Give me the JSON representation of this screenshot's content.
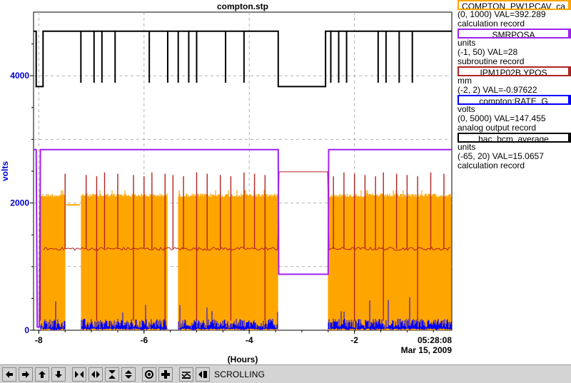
{
  "chart_data": {
    "type": "line",
    "title": "compton.stp",
    "xlabel": "(Hours)",
    "ylabel": "volts",
    "xlim": [
      -8.1,
      -0.15
    ],
    "ylim": [
      0,
      5000
    ],
    "x_ticks": [
      -8,
      -6,
      -4,
      -2
    ],
    "x_tick_labels": [
      "-8",
      "-6",
      "-4",
      "-2"
    ],
    "y_ticks": [
      0,
      2000,
      4000
    ],
    "y_tick_labels": [
      "0",
      "2000",
      "4000"
    ],
    "grid": true,
    "end_time": "05:28:08",
    "end_date": "Mar 15, 2009",
    "gaps": [
      [
        -7.5,
        -7.2
      ],
      [
        -5.55,
        -5.35
      ],
      [
        -3.45,
        -2.5
      ]
    ],
    "series": [
      {
        "name": "COMPTON_PW1PCAV_ca",
        "color": "#ffa500",
        "range": "(0, 1000)",
        "val": "VAL=392.289",
        "record": "calculation record",
        "style": "band",
        "low": 0,
        "high": 2150,
        "high_peak": 2200,
        "flat_level": 1970,
        "flat_segments": [
          [
            -7.48,
            -7.22
          ]
        ]
      },
      {
        "name": "SMRPOSA",
        "color": "#a020f0",
        "units": "units",
        "range": "(-1, 50)",
        "val": "VAL=28",
        "record": "subroutine record",
        "points": [
          [
            -8.1,
            2840
          ],
          [
            -8.05,
            2840
          ],
          [
            -8.03,
            50
          ],
          [
            -7.99,
            50
          ],
          [
            -7.97,
            2840
          ],
          [
            -3.45,
            2840
          ],
          [
            -3.44,
            880
          ],
          [
            -2.5,
            880
          ],
          [
            -2.49,
            2840
          ],
          [
            -0.15,
            2840
          ]
        ]
      },
      {
        "name": "IPM1P02B.YPOS",
        "color": "#b22222",
        "units": "mm",
        "range": "(-2, 2)",
        "val": "VAL=-0.97622",
        "record": "",
        "base_level": 1280,
        "spike_level": 2480,
        "dip_level": 150,
        "gap_level": 2490,
        "gap_x": [
          -3.44,
          -2.5
        ],
        "spike_x": [
          -7.97,
          -7.5,
          -7.1,
          -6.9,
          -6.75,
          -6.5,
          -6.2,
          -6.0,
          -5.85,
          -5.6,
          -5.45,
          -5.25,
          -5.0,
          -4.8,
          -4.55,
          -4.35,
          -4.1,
          -3.9,
          -3.7,
          -2.4,
          -2.2,
          -2.0,
          -1.8,
          -1.6,
          -1.45,
          -1.2,
          -1.0,
          -0.8,
          -0.55,
          -0.3
        ]
      },
      {
        "name": "compton:RATE_G",
        "color": "#0000ff",
        "units": "volts",
        "range": "(0, 5000)",
        "val": "VAL=147.455",
        "record": "analog output record",
        "low": 30,
        "high": 180,
        "spike_high": 550
      },
      {
        "name": "hac_bcm_average",
        "color": "#000000",
        "units": "units",
        "range": "(-65, 20)",
        "val": "VAL=15.0657",
        "record": "calculation record",
        "high_level": 4700,
        "low_level": 3830,
        "dip_level": 3890,
        "low_segments": [
          [
            -8.05,
            -7.92
          ],
          [
            -3.45,
            -2.55
          ]
        ],
        "dip_x": [
          -7.2,
          -6.95,
          -6.8,
          -6.55,
          -5.9,
          -5.55,
          -5.35,
          -5.15,
          -5.0,
          -4.45,
          -4.1,
          -2.45,
          -2.3,
          -2.15,
          -1.55,
          -1.4,
          -1.15,
          -0.9
        ]
      }
    ]
  },
  "legend": [
    {
      "name": "COMPTON_PW1PCAV_ca",
      "units": "",
      "range": "(0, 1000) VAL=392.289",
      "record": "calculation record",
      "color": "#ffa500"
    },
    {
      "name": "SMRPOSA",
      "units": "units",
      "range": "(-1, 50) VAL=28",
      "record": "subroutine record",
      "color": "#a020f0"
    },
    {
      "name": "IPM1P02B.YPOS",
      "units": "mm",
      "range": "(-2, 2) VAL=-0.97622",
      "record": "",
      "color": "#b22222"
    },
    {
      "name": "compton:RATE_G",
      "units": "volts",
      "range": "(0, 5000) VAL=147.455",
      "record": "analog output record",
      "color": "#0000ff"
    },
    {
      "name": "hac_bcm_average",
      "units": "units",
      "range": "(-65, 20) VAL=15.0657",
      "record": "calculation record",
      "color": "#000000"
    }
  ],
  "toolbar": {
    "status": "SCROLLING",
    "buttons": [
      "arrow-left-icon",
      "arrow-right-icon",
      "arrow-up-icon",
      "arrow-down-icon",
      "zoom-in-x-icon",
      "zoom-out-x-icon",
      "zoom-in-y-icon",
      "zoom-out-y-icon",
      "autoscale-icon",
      "add-icon",
      "config-icon",
      "scroll-icon"
    ]
  }
}
